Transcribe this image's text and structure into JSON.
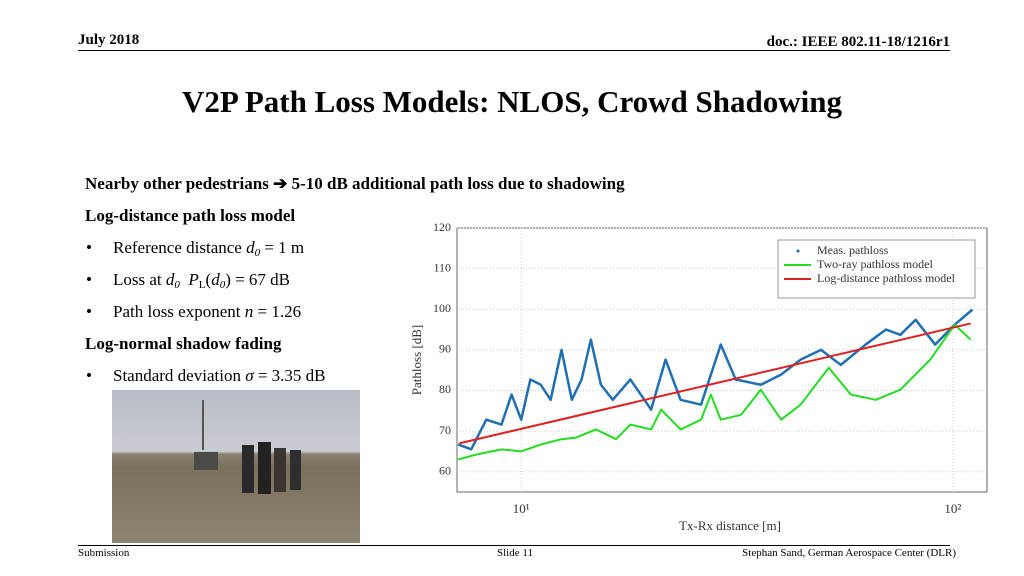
{
  "header": {
    "date": "July 2018",
    "doc": "doc.: IEEE 802.11-18/1216r1"
  },
  "title": "V2P Path Loss Models: NLOS, Crowd Shadowing",
  "intro": [
    "Nearby other pedestrians",
    "5-10 dB additional path loss due to shadowing"
  ],
  "sections": [
    {
      "heading": "Log-distance path loss model",
      "bullets": [
        [
          "Reference distance ",
          "d",
          "0",
          " = 1 m"
        ],
        [
          "Loss at ",
          "d",
          "0",
          "P",
          "L",
          "(",
          "d",
          "0",
          ") = 67 dB"
        ],
        [
          "Path loss exponent ",
          "n",
          " = 1.26"
        ]
      ]
    },
    {
      "heading": "Log-normal shadow fading",
      "bullets": [
        [
          "Standard deviation ",
          "σ",
          " = 3.35 dB"
        ]
      ]
    }
  ],
  "chart_data": {
    "type": "line",
    "xlabel": "Tx-Rx distance [m]",
    "ylabel": "Pathloss [dB]",
    "xscale": "log",
    "xlim": [
      7.1,
      120
    ],
    "ylim": [
      55,
      120
    ],
    "xticks": [
      {
        "value": 10,
        "label": "10¹"
      },
      {
        "value": 100,
        "label": "10²"
      }
    ],
    "yticks": [
      60,
      70,
      80,
      90,
      100,
      110,
      120
    ],
    "grid": true,
    "legend": "upper right",
    "series": [
      {
        "name": "Meas. pathloss",
        "color": "#1f6fb2",
        "marker": ".",
        "x": [
          7.14,
          7.66,
          8.3,
          9.0,
          9.5,
          10,
          10.5,
          11.1,
          11.7,
          12.4,
          13.1,
          13.8,
          14.5,
          15.3,
          16.3,
          17.9,
          20,
          21.6,
          23.4,
          26.1,
          29,
          31.4,
          35.9,
          40,
          44.4,
          49.5,
          55,
          62.8,
          70,
          75.6,
          82,
          91,
          101,
          111
        ],
        "values": [
          66.7,
          65.5,
          72.8,
          71.6,
          79,
          72.8,
          82.7,
          81.4,
          77.7,
          90,
          77.7,
          82.7,
          92.5,
          81.4,
          77.7,
          82.7,
          75.3,
          87.6,
          77.7,
          76.5,
          91.3,
          82.7,
          81.4,
          83.9,
          87.6,
          90,
          86.3,
          91.3,
          95,
          93.7,
          97.4,
          91.3,
          96.2,
          99.9
        ]
      },
      {
        "name": "Two-ray pathloss model",
        "color": "#22dd22",
        "x": [
          7.14,
          7.86,
          9,
          10,
          11.1,
          12.4,
          13.4,
          14.9,
          16.6,
          17.9,
          20,
          21.1,
          23.4,
          26.1,
          27.5,
          29,
          32.3,
          35.9,
          40,
          44.4,
          51.6,
          58,
          66.3,
          75.6,
          88.7,
          101,
          110
        ],
        "values": [
          63,
          64.2,
          65.5,
          65,
          66.7,
          68,
          68.4,
          70.4,
          68,
          71.6,
          70.4,
          75.3,
          70.4,
          72.8,
          79,
          72.8,
          74,
          80.2,
          72.8,
          76.5,
          85.6,
          79,
          77.7,
          80.2,
          87.6,
          96.2,
          92.5
        ]
      },
      {
        "name": "Log-distance pathloss model",
        "color": "#e02020",
        "x": [
          7.2,
          110
        ],
        "values": [
          67,
          96.5
        ]
      }
    ]
  },
  "footer": {
    "left": "Submission",
    "center": "Slide 11",
    "right": "Stephan Sand, German Aerospace Center (DLR)"
  }
}
